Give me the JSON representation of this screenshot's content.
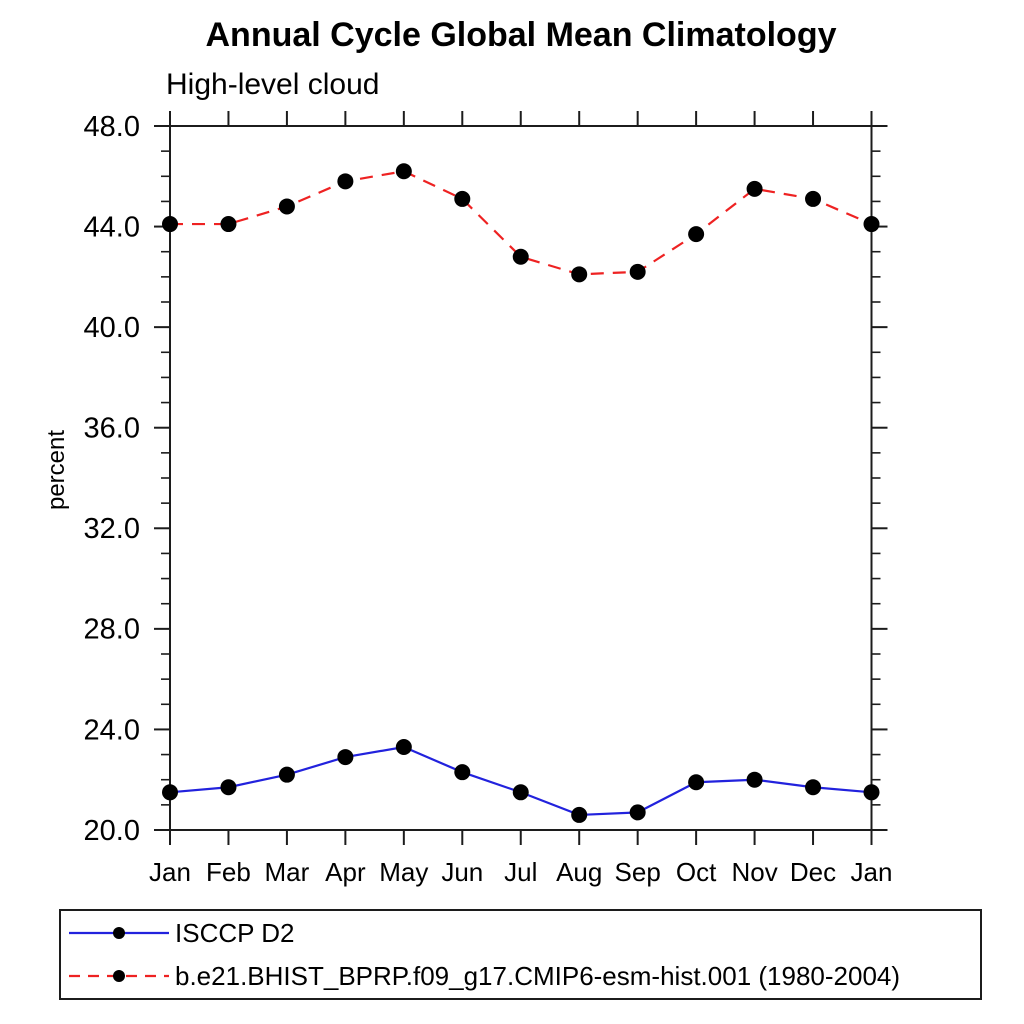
{
  "page": {
    "background_color": "#ffffff",
    "text_color": "#000000",
    "axis_color": "#1c1c1c"
  },
  "chart_data": {
    "type": "line",
    "title": "Annual Cycle Global Mean Climatology",
    "subtitle": "High-level cloud",
    "ylabel": "percent",
    "ylim": [
      20.0,
      48.0
    ],
    "y_major_tick_interval": 4.0,
    "y_minor_tick_interval": 1.0,
    "y_tick_labels": [
      "20.0",
      "24.0",
      "28.0",
      "32.0",
      "36.0",
      "40.0",
      "44.0",
      "48.0"
    ],
    "x_tick_labels": [
      "Jan",
      "Feb",
      "Mar",
      "Apr",
      "May",
      "Jun",
      "Jul",
      "Aug",
      "Sep",
      "Oct",
      "Nov",
      "Dec",
      "Jan"
    ],
    "grid": false,
    "legend_position": "bottom-left",
    "series": [
      {
        "name": "ISCCP D2",
        "line_color": "#2222dd",
        "line_style": "solid",
        "marker": "filled-circle",
        "marker_color": "#000000",
        "values": [
          21.5,
          21.7,
          22.2,
          22.9,
          23.3,
          22.3,
          21.5,
          20.6,
          20.7,
          21.9,
          22.0,
          21.7,
          21.5
        ]
      },
      {
        "name": "b.e21.BHIST_BPRP.f09_g17.CMIP6-esm-hist.001 (1980-2004)",
        "line_color": "#ee2222",
        "line_style": "dashed",
        "marker": "filled-circle",
        "marker_color": "#000000",
        "values": [
          44.1,
          44.1,
          44.8,
          45.8,
          46.2,
          45.1,
          42.8,
          42.1,
          42.2,
          43.7,
          45.5,
          45.1,
          44.1
        ]
      }
    ]
  }
}
